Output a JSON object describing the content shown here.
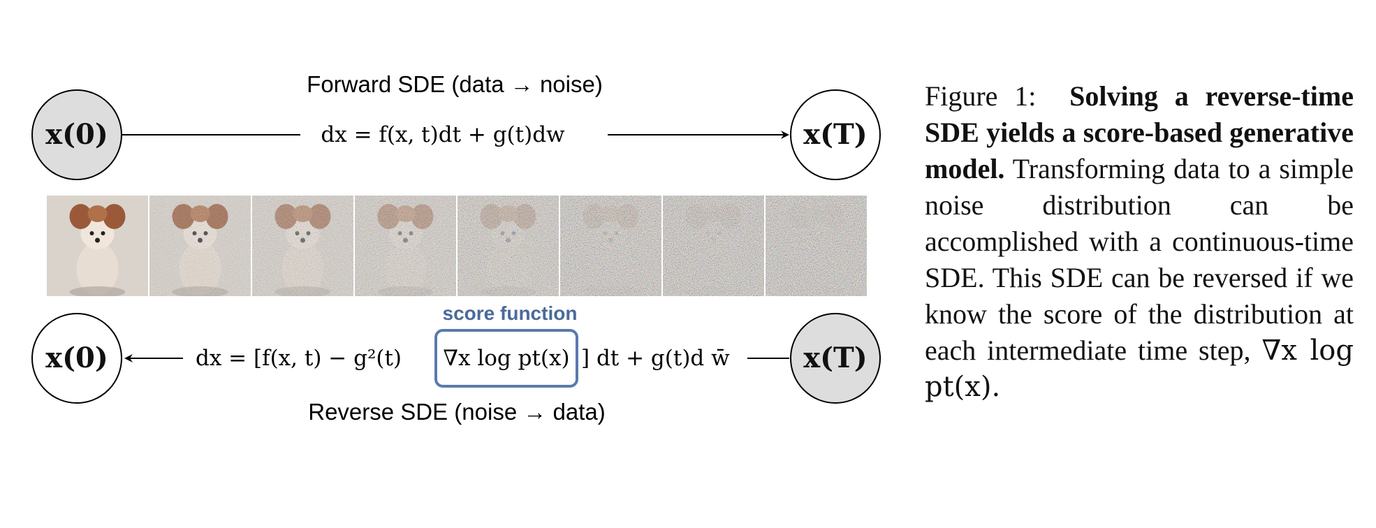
{
  "forward": {
    "title": "Forward SDE (data → noise)",
    "start_node": "x(0)",
    "end_node": "x(T)",
    "equation": "dx = f(x, t)dt + g(t)dw"
  },
  "reverse": {
    "title": "Reverse SDE (noise → data)",
    "start_node": "x(T)",
    "end_node": "x(0)",
    "equation_left": "dx = [f(x, t) − g²(t)",
    "equation_score": "∇x log pt(x)",
    "equation_right": "] dt + g(t)d w̄",
    "score_label": "score function"
  },
  "images": {
    "count_shown": 8,
    "noise_levels": [
      0.0,
      0.18,
      0.35,
      0.52,
      0.72,
      0.88,
      0.95,
      1.0
    ]
  },
  "colors": {
    "node_fill_shaded": "#dddddd",
    "node_stroke": "#000000",
    "score_box": "#5a7bab",
    "score_label": "#4a6a9b"
  },
  "caption": {
    "label": "Figure 1:",
    "bold": "Solving a reverse-time SDE yields a score-based generative model.",
    "body": "Transforming data to a simple noise distribution can be accomplished with a continuous-time SDE. This SDE can be reversed if we know the score of the distribution at each intermediate time step,",
    "math": "∇x log pt(x)."
  }
}
